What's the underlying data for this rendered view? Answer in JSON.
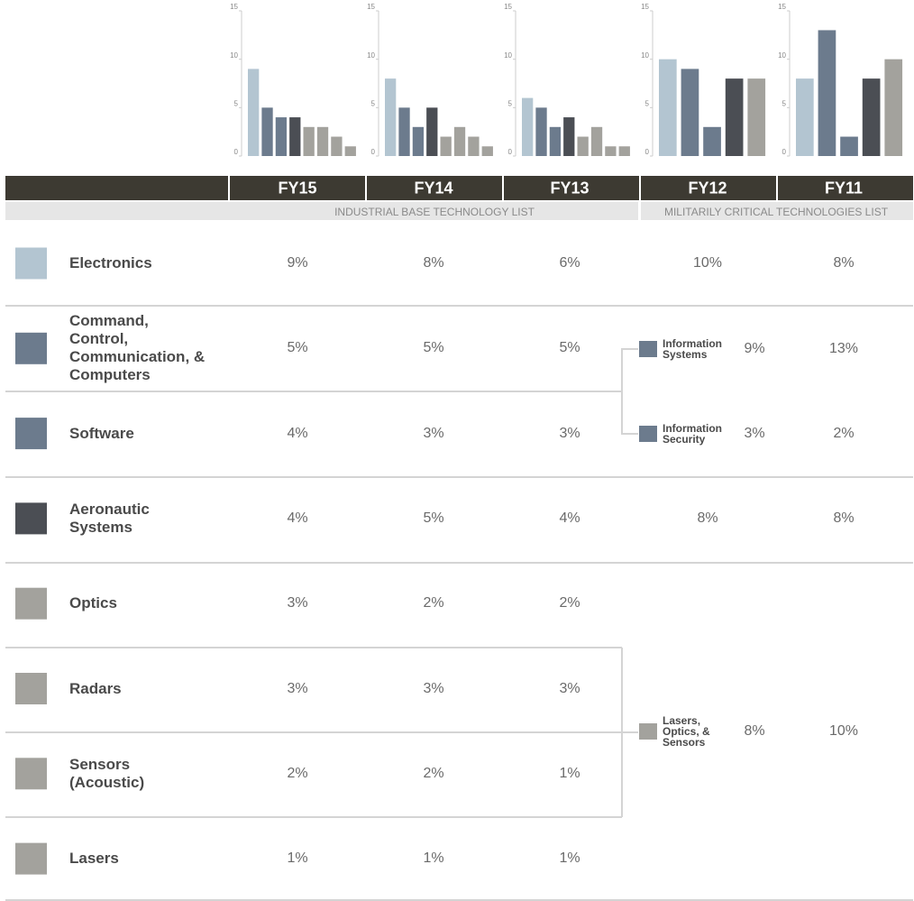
{
  "chart_data": [
    {
      "type": "bar",
      "title": "FY15",
      "values": [
        9,
        5,
        4,
        4,
        3,
        3,
        2,
        1
      ],
      "colors": [
        "#b3c5d1",
        "#6c7b8d",
        "#6c7b8d",
        "#4b4e54",
        "#a3a29d",
        "#a3a29d",
        "#a3a29d",
        "#a3a29d"
      ],
      "ylim": [
        0,
        15
      ],
      "yticks": [
        0,
        5,
        10,
        15
      ]
    },
    {
      "type": "bar",
      "title": "FY14",
      "values": [
        8,
        5,
        3,
        5,
        2,
        3,
        2,
        1
      ],
      "colors": [
        "#b3c5d1",
        "#6c7b8d",
        "#6c7b8d",
        "#4b4e54",
        "#a3a29d",
        "#a3a29d",
        "#a3a29d",
        "#a3a29d"
      ],
      "ylim": [
        0,
        15
      ],
      "yticks": [
        0,
        5,
        10,
        15
      ]
    },
    {
      "type": "bar",
      "title": "FY13",
      "values": [
        6,
        5,
        3,
        4,
        2,
        3,
        1,
        1
      ],
      "colors": [
        "#b3c5d1",
        "#6c7b8d",
        "#6c7b8d",
        "#4b4e54",
        "#a3a29d",
        "#a3a29d",
        "#a3a29d",
        "#a3a29d"
      ],
      "ylim": [
        0,
        15
      ],
      "yticks": [
        0,
        5,
        10,
        15
      ]
    },
    {
      "type": "bar",
      "title": "FY12",
      "values": [
        10,
        9,
        3,
        8,
        8
      ],
      "colors": [
        "#b3c5d1",
        "#6c7b8d",
        "#6c7b8d",
        "#4b4e54",
        "#a3a29d"
      ],
      "ylim": [
        0,
        15
      ],
      "yticks": [
        0,
        5,
        10,
        15
      ]
    },
    {
      "type": "bar",
      "title": "FY11",
      "values": [
        8,
        13,
        2,
        8,
        10
      ],
      "colors": [
        "#b3c5d1",
        "#6c7b8d",
        "#6c7b8d",
        "#4b4e54",
        "#a3a29d"
      ],
      "ylim": [
        0,
        15
      ],
      "yticks": [
        0,
        5,
        10,
        15
      ]
    }
  ],
  "table": {
    "lists": [
      "INDUSTRIAL BASE TECHNOLOGY LIST",
      "MILITARILY CRITICAL TECHNOLOGIES LIST"
    ],
    "rows": [
      {
        "label": "Electronics",
        "color": "#b3c5d1",
        "values": [
          "9%",
          "8%",
          "6%",
          "10%",
          "8%"
        ]
      },
      {
        "label": "Command,\nControl,\nCommunication, &\nComputers",
        "color": "#6c7b8d",
        "values": [
          "5%",
          "5%",
          "5%"
        ]
      },
      {
        "label": "Software",
        "color": "#6c7b8d",
        "values": [
          "4%",
          "3%",
          "3%"
        ]
      },
      {
        "label": "Aeronautic\nSystems",
        "color": "#4b4e54",
        "values": [
          "4%",
          "5%",
          "4%",
          "8%",
          "8%"
        ]
      },
      {
        "label": "Optics",
        "color": "#a3a29d",
        "values": [
          "3%",
          "2%",
          "2%"
        ]
      },
      {
        "label": "Radars",
        "color": "#a3a29d",
        "values": [
          "3%",
          "3%",
          "3%"
        ]
      },
      {
        "label": "Sensors\n(Acoustic)",
        "color": "#a3a29d",
        "values": [
          "2%",
          "2%",
          "1%"
        ]
      },
      {
        "label": "Lasers",
        "color": "#a3a29d",
        "values": [
          "1%",
          "1%",
          "1%"
        ]
      }
    ],
    "merged": [
      {
        "label": "Information\nSystems",
        "color": "#6c7b8d",
        "values": [
          "9%",
          "13%"
        ]
      },
      {
        "label": "Information\nSecurity",
        "color": "#6c7b8d",
        "values": [
          "3%",
          "2%"
        ]
      },
      {
        "label": "Lasers,\nOptics, &\nSensors",
        "color": "#a3a29d",
        "values": [
          "8%",
          "10%"
        ]
      }
    ]
  }
}
